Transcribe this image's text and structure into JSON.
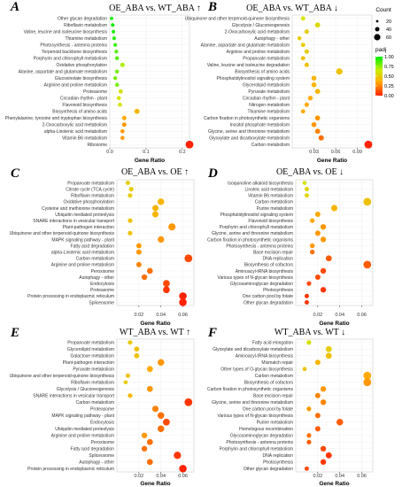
{
  "legend": {
    "count_title": "Count",
    "count_sizes": [
      20,
      40,
      60
    ],
    "padj_title": "padj",
    "padj_ticks": [
      1.0,
      0.75,
      0.5,
      0.25,
      0.0
    ],
    "padj_tick_labels": [
      "1.00",
      "0.75",
      "0.50",
      "0.25",
      "0.00"
    ],
    "colors": [
      "#00ee00",
      "#ff2200"
    ]
  },
  "chart_data": [
    {
      "type": "scatter",
      "panel_label": "A",
      "title": "OE_ABA vs. WT_ABA ↑",
      "xlabel": "Gene Ratio",
      "xlim": [
        0,
        0.22
      ],
      "xticks": [
        0.0,
        0.1,
        0.2
      ],
      "xtick_labels": [
        "0.0",
        "0.1",
        "0.2"
      ],
      "categories": [
        "Other glycan degradation",
        "Riboflavin metabolism",
        "Valine, leucine and isoleucine biosynthesis",
        "Thiamine metabolism",
        "Photosynthesis - antenna proteins",
        "Terpenoid backbone biosynthesis",
        "Porphyrin and chlorophyll metabolism",
        "Oxidative phosphorylation",
        "Alanine, aspartate and glutamate metabolism",
        "Glucosinolate biosynthesis",
        "Arginine and proline metabolism",
        "Proteasome",
        "Circadian rhythm - plant",
        "Flavonoid biosynthesis",
        "Biosynthesis of amino acids",
        "Phenylalanine, tyrosine and tryptophan biosynthesis",
        "2-Oxocarboxylic acid metabolism",
        "alpha-Linolenic acid metabolism",
        "Vitamin B6 metabolism",
        "Ribosome"
      ],
      "x": [
        0.005,
        0.008,
        0.01,
        0.012,
        0.015,
        0.018,
        0.02,
        0.035,
        0.02,
        0.015,
        0.02,
        0.03,
        0.025,
        0.028,
        0.075,
        0.04,
        0.04,
        0.035,
        0.035,
        0.22
      ],
      "count": [
        2,
        3,
        3,
        3,
        4,
        4,
        5,
        9,
        5,
        4,
        5,
        7,
        6,
        6,
        14,
        8,
        8,
        6,
        5,
        50
      ],
      "padj": [
        0.98,
        0.97,
        0.96,
        0.95,
        0.9,
        0.85,
        0.85,
        0.7,
        0.8,
        0.8,
        0.8,
        0.6,
        0.6,
        0.6,
        0.4,
        0.35,
        0.3,
        0.3,
        0.3,
        0.0
      ]
    },
    {
      "type": "scatter",
      "panel_label": "B",
      "title": "OE_ABA vs. WT_ABA ↓",
      "xlabel": "Gene Ratio",
      "xlim": [
        0,
        0.11
      ],
      "xticks": [
        0.03,
        0.06,
        0.09
      ],
      "xtick_labels": [
        "0.03",
        "0.06",
        "0.09"
      ],
      "categories": [
        "Ubiquinone and other terpenoid-quinone biosynthesis",
        "Glycolysis / Gluconeogenesis",
        "2-Oxocarboxylic acid metabolism",
        "Autophagy - other",
        "Alanine, aspartate and glutamate metabolism",
        "Arginine and proline metabolism",
        "Propanoate metabolism",
        "Valine, leucine and isoleucine degradation",
        "Biosynthesis of amino acids",
        "Phosphatidylinositol signaling system",
        "Glycerolipid metabolism",
        "Pyruvate metabolism",
        "Circadian rhythm - plant",
        "Nitrogen metabolism",
        "Thiamine metabolism",
        "Carbon fixation in photosynthetic organisms",
        "Inositol phosphate metabolism",
        "Glycine, serine and threonine metabolism",
        "Glyoxylate and dicarboxylate metabolism",
        "Carbon metabolism"
      ],
      "x": [
        0.015,
        0.035,
        0.02,
        0.01,
        0.015,
        0.02,
        0.015,
        0.02,
        0.065,
        0.03,
        0.03,
        0.035,
        0.025,
        0.02,
        0.015,
        0.035,
        0.03,
        0.035,
        0.04,
        0.105
      ],
      "count": [
        4,
        8,
        5,
        3,
        4,
        5,
        4,
        5,
        16,
        7,
        7,
        8,
        6,
        5,
        4,
        8,
        7,
        8,
        9,
        28
      ],
      "padj": [
        0.6,
        0.55,
        0.5,
        0.5,
        0.5,
        0.5,
        0.45,
        0.45,
        0.45,
        0.4,
        0.4,
        0.4,
        0.35,
        0.35,
        0.35,
        0.3,
        0.3,
        0.25,
        0.2,
        0.0
      ]
    },
    {
      "type": "scatter",
      "panel_label": "C",
      "title": "OE_ABA vs. OE ↑",
      "xlabel": "Gene Ratio",
      "xlim": [
        0,
        0.07
      ],
      "xticks": [
        0.02,
        0.04,
        0.06
      ],
      "xtick_labels": [
        "0.02",
        "0.04",
        "0.06"
      ],
      "categories": [
        "Propanoate metabolism",
        "Citrate cycle (TCA cycle)",
        "Riboflavin metabolism",
        "Oxidative phosphorylation",
        "Cysteine and methionine metabolism",
        "Ubiquitin mediated proteolysis",
        "SNARE interactions in vesicular transport",
        "Plant-pathogen interaction",
        "Ubiquinone and other terpenoid-quinone biosynthesis",
        "MAPK signaling pathway - plant",
        "Fatty acid degradation",
        "alpha-Linolenic acid metabolism",
        "Carbon metabolism",
        "Arginine and proline metabolism",
        "Peroxisome",
        "Autophagy - other",
        "Endocytosis",
        "Proteasome",
        "Protein processing in endoplasmic reticulum",
        "Spliceosome"
      ],
      "x": [
        0.01,
        0.013,
        0.012,
        0.04,
        0.035,
        0.035,
        0.012,
        0.05,
        0.012,
        0.04,
        0.02,
        0.02,
        0.065,
        0.02,
        0.03,
        0.025,
        0.045,
        0.045,
        0.06,
        0.06
      ],
      "count": [
        8,
        10,
        9,
        30,
        26,
        26,
        9,
        38,
        9,
        30,
        15,
        15,
        50,
        15,
        22,
        19,
        34,
        34,
        46,
        46
      ],
      "padj": [
        0.5,
        0.5,
        0.5,
        0.4,
        0.4,
        0.4,
        0.45,
        0.3,
        0.45,
        0.3,
        0.3,
        0.3,
        0.1,
        0.25,
        0.2,
        0.2,
        0.1,
        0.05,
        0.0,
        0.0
      ]
    },
    {
      "type": "scatter",
      "panel_label": "D",
      "title": "OE_ABA vs. OE ↓",
      "xlabel": "Gene Ratio",
      "xlim": [
        0,
        0.07
      ],
      "xticks": [
        0.02,
        0.04,
        0.06
      ],
      "xtick_labels": [
        "0.02",
        "0.04",
        "0.06"
      ],
      "categories": [
        "Isoquinoline alkaloid biosynthesis",
        "Linoleic acid metabolism",
        "Vitamin B6 metabolism",
        "Carbon metabolism",
        "Purine metabolism",
        "Phosphatidylinositol signaling system",
        "Flavonoid biosynthesis",
        "Porphyrin and chlorophyll metabolism",
        "Glycine, serine and threonine metabolism",
        "Carbon fixation in photosynthetic organisms",
        "Photosynthesis - antenna proteins",
        "Base excision repair",
        "DNA replication",
        "Biosynthesis of cofactors",
        "Aminoacyl-tRNA biosynthesis",
        "Various types of N-glycan biosynthesis",
        "Glycosaminoglycan degradation",
        "Photosynthesis",
        "One carbon pool by folate",
        "Other glycan degradation"
      ],
      "x": [
        0.008,
        0.01,
        0.01,
        0.065,
        0.035,
        0.02,
        0.015,
        0.025,
        0.02,
        0.025,
        0.015,
        0.015,
        0.03,
        0.065,
        0.025,
        0.02,
        0.012,
        0.025,
        0.01,
        0.01
      ],
      "count": [
        4,
        5,
        5,
        32,
        17,
        10,
        7,
        12,
        10,
        12,
        7,
        7,
        15,
        32,
        12,
        10,
        6,
        12,
        5,
        5
      ],
      "padj": [
        0.6,
        0.55,
        0.55,
        0.45,
        0.4,
        0.35,
        0.35,
        0.3,
        0.3,
        0.3,
        0.3,
        0.2,
        0.15,
        0.15,
        0.1,
        0.1,
        0.1,
        0.05,
        0.05,
        0.05
      ]
    },
    {
      "type": "scatter",
      "panel_label": "E",
      "title": "WT_ABA vs. WT ↑",
      "xlabel": "Gene Ratio",
      "xlim": [
        0,
        0.07
      ],
      "xticks": [
        0.02,
        0.04,
        0.06
      ],
      "xtick_labels": [
        "0.02",
        "0.04",
        "0.06"
      ],
      "categories": [
        "Propanoate metabolism",
        "Glycerolipid metabolism",
        "Galactose metabolism",
        "Plant-pathogen interaction",
        "Pyruvate metabolism",
        "Ubiquinone and other terpenoid-quinone biosynthesis",
        "Riboflavin metabolism",
        "Glycolysis / Gluconeogenesis",
        "SNARE interactions in vesicular transport",
        "Carbon metabolism",
        "Proteasome",
        "MAPK signaling pathway - plant",
        "Endocytosis",
        "Ubiquitin mediated proteolysis",
        "Arginine and proline metabolism",
        "Peroxisome",
        "Fatty acid degradation",
        "Spliceosome",
        "Autophagy - other",
        "Protein processing in endoplasmic reticulum"
      ],
      "x": [
        0.012,
        0.018,
        0.018,
        0.04,
        0.03,
        0.01,
        0.008,
        0.03,
        0.012,
        0.065,
        0.035,
        0.04,
        0.045,
        0.04,
        0.025,
        0.03,
        0.025,
        0.055,
        0.03,
        0.06
      ],
      "count": [
        9,
        14,
        14,
        31,
        23,
        8,
        6,
        23,
        9,
        50,
        27,
        31,
        35,
        31,
        19,
        23,
        19,
        42,
        23,
        46
      ],
      "padj": [
        0.5,
        0.45,
        0.45,
        0.3,
        0.35,
        0.45,
        0.5,
        0.3,
        0.4,
        0.05,
        0.25,
        0.2,
        0.1,
        0.2,
        0.3,
        0.2,
        0.2,
        0.05,
        0.2,
        0.0
      ]
    },
    {
      "type": "scatter",
      "panel_label": "F",
      "title": "WT_ABA vs. WT ↓",
      "xlabel": "Gene Ratio",
      "xlim": [
        0,
        0.07
      ],
      "xticks": [
        0.02,
        0.04,
        0.06
      ],
      "xtick_labels": [
        "0.02",
        "0.04",
        "0.06"
      ],
      "categories": [
        "Fatty acid elongation",
        "Glyoxylate and dicarboxylate metabolism",
        "Aminoacyl-tRNA biosynthesis",
        "Mismatch repair",
        "Other types of O-glycan biosynthesis",
        "Carbon metabolism",
        "Biosynthesis of cofactors",
        "Carbon fixation in photosynthetic organisms",
        "Base excision repair",
        "Glycine, serine and threonine metabolism",
        "One carbon pool by folate",
        "Various types of N-glycan biosynthesis",
        "Purine metabolism",
        "Homologous recombination",
        "Glycosaminoglycan degradation",
        "Photosynthesis - antenna proteins",
        "Porphyrin and chlorophyll metabolism",
        "DNA replication",
        "Photosynthesis",
        "Other glycan degradation"
      ],
      "x": [
        0.012,
        0.03,
        0.03,
        0.02,
        0.008,
        0.065,
        0.065,
        0.025,
        0.02,
        0.025,
        0.012,
        0.02,
        0.04,
        0.02,
        0.012,
        0.012,
        0.025,
        0.03,
        0.025,
        0.01
      ],
      "count": [
        6,
        15,
        15,
        10,
        4,
        32,
        32,
        12,
        10,
        12,
        6,
        10,
        20,
        10,
        6,
        6,
        12,
        15,
        12,
        5
      ],
      "padj": [
        0.6,
        0.5,
        0.45,
        0.4,
        0.45,
        0.35,
        0.3,
        0.3,
        0.25,
        0.25,
        0.3,
        0.2,
        0.15,
        0.15,
        0.2,
        0.15,
        0.1,
        0.05,
        0.05,
        0.1
      ]
    }
  ]
}
